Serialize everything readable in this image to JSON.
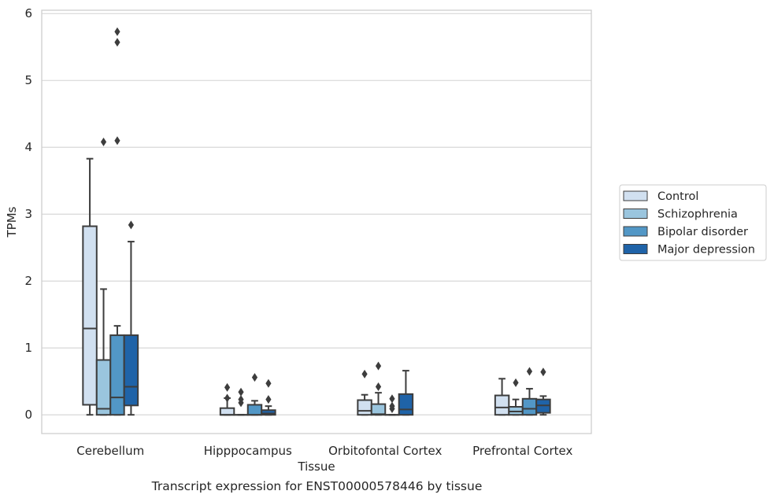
{
  "chart_data": {
    "type": "boxplot",
    "xlabel": "Tissue",
    "ylabel": "TPMs",
    "caption": "Transcript expression for ENST00000578446 by tissue",
    "ylim": [
      -0.28,
      6.05
    ],
    "yticks": [
      0,
      1,
      2,
      3,
      4,
      5,
      6
    ],
    "categories": [
      "Cerebellum",
      "Hipppocampus",
      "Orbitofontal Cortex",
      "Prefrontal Cortex"
    ],
    "grid": "horizontal",
    "legend_position": "right",
    "series": [
      {
        "name": "Control",
        "color": "#d1e0f0",
        "boxes": [
          {
            "min": 0,
            "q1": 0.15,
            "median": 1.29,
            "q3": 2.82,
            "max": 3.83,
            "outliers": []
          },
          {
            "min": 0,
            "q1": 0,
            "median": 0,
            "q3": 0.1,
            "max": 0.25,
            "outliers": [
              0.25,
              0.41
            ]
          },
          {
            "min": 0,
            "q1": 0,
            "median": 0.06,
            "q3": 0.22,
            "max": 0.3,
            "outliers": [
              0.61
            ]
          },
          {
            "min": 0,
            "q1": 0,
            "median": 0.11,
            "q3": 0.29,
            "max": 0.54,
            "outliers": []
          }
        ]
      },
      {
        "name": "Schizophrenia",
        "color": "#9ac5de",
        "boxes": [
          {
            "min": 0,
            "q1": 0,
            "median": 0.09,
            "q3": 0.82,
            "max": 1.88,
            "outliers": [
              4.08
            ]
          },
          {
            "min": 0,
            "q1": 0,
            "median": 0,
            "q3": 0,
            "max": 0,
            "outliers": [
              0.18,
              0.23,
              0.34
            ]
          },
          {
            "min": 0,
            "q1": 0,
            "median": 0.01,
            "q3": 0.16,
            "max": 0.33,
            "outliers": [
              0.42,
              0.73
            ]
          },
          {
            "min": 0,
            "q1": 0,
            "median": 0.05,
            "q3": 0.12,
            "max": 0.23,
            "outliers": [
              0.48
            ]
          }
        ]
      },
      {
        "name": "Bipolar disorder",
        "color": "#5297c6",
        "boxes": [
          {
            "min": 0,
            "q1": 0,
            "median": 0.26,
            "q3": 1.19,
            "max": 1.33,
            "outliers": [
              4.1,
              5.57,
              5.73
            ]
          },
          {
            "min": 0,
            "q1": 0,
            "median": 0,
            "q3": 0.15,
            "max": 0.21,
            "outliers": [
              0.56
            ]
          },
          {
            "min": 0,
            "q1": 0,
            "median": 0,
            "q3": 0,
            "max": 0,
            "outliers": [
              0.09,
              0.13,
              0.24
            ]
          },
          {
            "min": 0,
            "q1": 0,
            "median": 0.09,
            "q3": 0.24,
            "max": 0.39,
            "outliers": [
              0.65
            ]
          }
        ]
      },
      {
        "name": "Major depression",
        "color": "#1f63a8",
        "boxes": [
          {
            "min": 0,
            "q1": 0.14,
            "median": 0.42,
            "q3": 1.19,
            "max": 2.59,
            "outliers": [
              2.84
            ]
          },
          {
            "min": 0,
            "q1": 0,
            "median": 0.02,
            "q3": 0.07,
            "max": 0.13,
            "outliers": [
              0.23,
              0.47
            ]
          },
          {
            "min": 0,
            "q1": 0,
            "median": 0.08,
            "q3": 0.31,
            "max": 0.66,
            "outliers": []
          },
          {
            "min": 0,
            "q1": 0.03,
            "median": 0.14,
            "q3": 0.23,
            "max": 0.28,
            "outliers": [
              0.64
            ]
          }
        ]
      }
    ]
  }
}
